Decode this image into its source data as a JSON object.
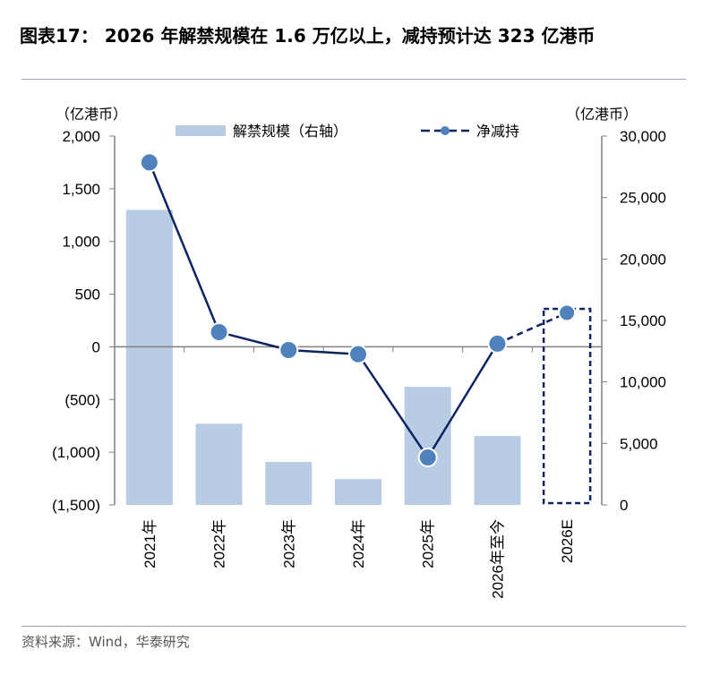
{
  "title": "图表17： 2026 年解禁规模在 1.6 万亿以上，减持预计达 323 亿港币",
  "source": "资料来源：Wind，华泰研究",
  "chart_data": {
    "type": "bar+line",
    "categories": [
      "2021年",
      "2022年",
      "2023年",
      "2024年",
      "2025年",
      "2026年至今",
      "2026E"
    ],
    "left_axis": {
      "unit_label": "（亿港币）",
      "range": [
        -1500,
        2000
      ],
      "ticks": [
        -1500,
        -1000,
        -500,
        0,
        500,
        1000,
        1500,
        2000
      ],
      "tick_labels": [
        "(1,500)",
        "(1,000)",
        "(500)",
        "0",
        "500",
        "1,000",
        "1,500",
        "2,000"
      ]
    },
    "right_axis": {
      "unit_label": "（亿港币）",
      "range": [
        0,
        30000
      ],
      "ticks": [
        0,
        5000,
        10000,
        15000,
        20000,
        25000,
        30000
      ],
      "tick_labels": [
        "0",
        "5,000",
        "10,000",
        "15,000",
        "20,000",
        "25,000",
        "30,000"
      ]
    },
    "series": [
      {
        "name": "解禁规模（右轴）",
        "type": "bar",
        "axis": "right",
        "color": "#b8cce4",
        "values": [
          24000,
          6600,
          3500,
          2100,
          9600,
          5600,
          null
        ]
      },
      {
        "name": "净减持",
        "type": "line",
        "axis": "left",
        "color": "#0c2461",
        "marker_color": "#4f81bd",
        "values": [
          1750,
          140,
          -30,
          -70,
          -1050,
          30,
          323
        ]
      }
    ],
    "highlight_category": "2026E",
    "legend_position": "top"
  }
}
